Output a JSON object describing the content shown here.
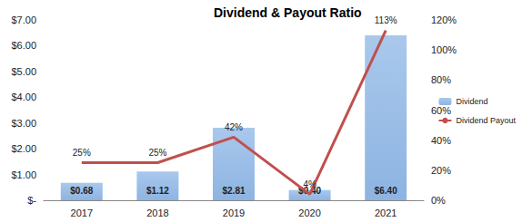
{
  "chart_data": {
    "type": "bar",
    "title": "Dividend & Payout Ratio",
    "categories": [
      "2017",
      "2018",
      "2019",
      "2020",
      "2021"
    ],
    "series": [
      {
        "name": "Dividend",
        "type": "bar",
        "color": "#8db4e2",
        "values": [
          0.68,
          1.12,
          2.81,
          0.4,
          6.4
        ],
        "value_labels": [
          "$0.68",
          "$1.12",
          "$2.81",
          "$0.40",
          "$6.40"
        ]
      },
      {
        "name": "Dividend Payout",
        "type": "line",
        "color": "#c0504d",
        "axis": "y2",
        "values": [
          25,
          25,
          42,
          4,
          113
        ],
        "value_labels": [
          "25%",
          "25%",
          "42%",
          "4%",
          "113%"
        ]
      }
    ],
    "ylim": [
      0,
      7
    ],
    "yticks": [
      {
        "value": 0,
        "label": "$-"
      },
      {
        "value": 1,
        "label": "$1.00"
      },
      {
        "value": 2,
        "label": "$2.00"
      },
      {
        "value": 3,
        "label": "$3.00"
      },
      {
        "value": 4,
        "label": "$4.00"
      },
      {
        "value": 5,
        "label": "$5.00"
      },
      {
        "value": 6,
        "label": "$6.00"
      },
      {
        "value": 7,
        "label": "$7.00"
      }
    ],
    "y2lim": [
      0,
      120
    ],
    "y2ticks": [
      {
        "value": 0,
        "label": "0%"
      },
      {
        "value": 20,
        "label": "20%"
      },
      {
        "value": 40,
        "label": "40%"
      },
      {
        "value": 60,
        "label": "60%"
      },
      {
        "value": 80,
        "label": "80%"
      },
      {
        "value": 100,
        "label": "100%"
      },
      {
        "value": 120,
        "label": "120%"
      }
    ],
    "data_labels": true,
    "legend": "right",
    "grid": false
  }
}
